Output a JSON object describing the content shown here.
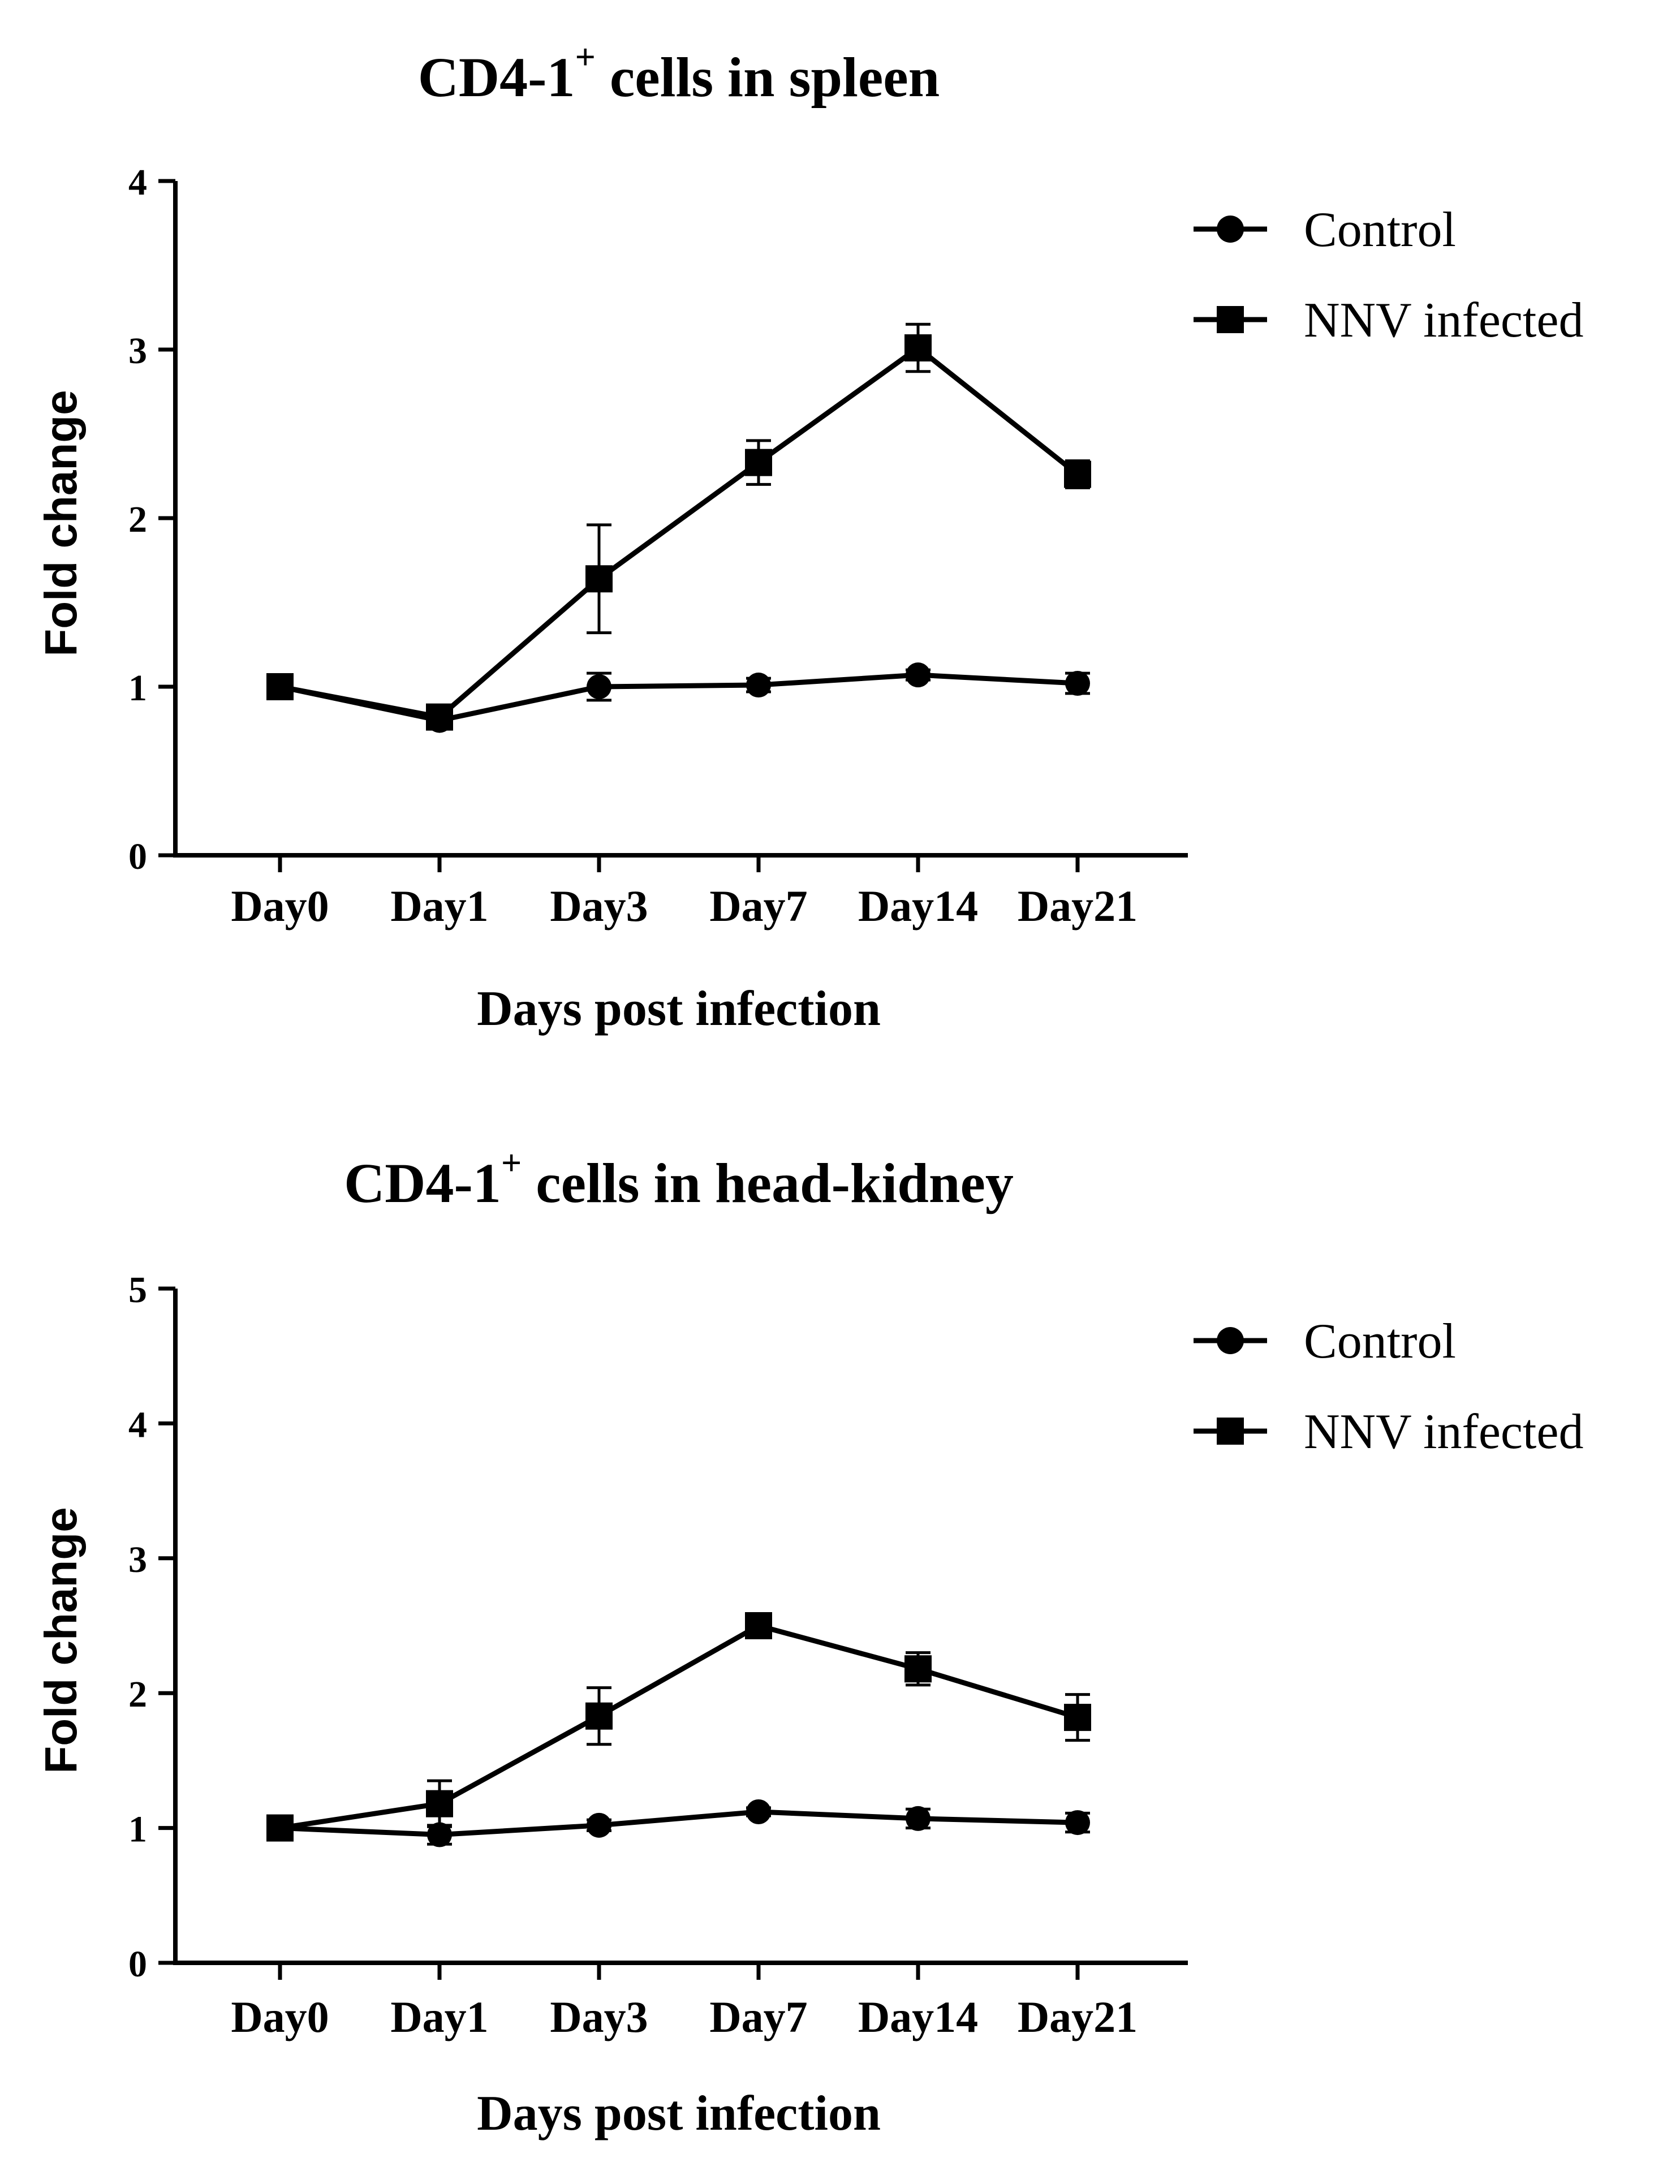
{
  "chart_data": [
    {
      "type": "line",
      "title": "CD4-1",
      "title_sup": "+",
      "title_rest": " cells in spleen",
      "xlabel": "Days post infection",
      "ylabel": "Fold change",
      "categories": [
        "Day0",
        "Day1",
        "Day3",
        "Day7",
        "Day14",
        "Day21"
      ],
      "ylim": [
        0,
        4
      ],
      "yticks": [
        "0",
        "1",
        "2",
        "3",
        "4"
      ],
      "legend_position": "top-right",
      "series": [
        {
          "name": "Control",
          "marker": "circle",
          "values": [
            1.0,
            0.8,
            1.0,
            1.01,
            1.07,
            1.02
          ],
          "errors": [
            0.02,
            0.05,
            0.08,
            0.04,
            0.03,
            0.06
          ]
        },
        {
          "name": "NNV infected",
          "marker": "square",
          "values": [
            1.0,
            0.82,
            1.64,
            2.33,
            3.01,
            2.26
          ],
          "errors": [
            0.02,
            0.04,
            0.32,
            0.13,
            0.14,
            0.08
          ]
        }
      ]
    },
    {
      "type": "line",
      "title": "CD4-1",
      "title_sup": "+",
      "title_rest": " cells in head-kidney",
      "xlabel": "Days post infection",
      "ylabel": "Fold change",
      "categories": [
        "Day0",
        "Day1",
        "Day3",
        "Day7",
        "Day14",
        "Day21"
      ],
      "ylim": [
        0,
        5
      ],
      "yticks": [
        "0",
        "1",
        "2",
        "3",
        "4",
        "5"
      ],
      "legend_position": "top-right",
      "series": [
        {
          "name": "Control",
          "marker": "circle",
          "values": [
            1.0,
            0.95,
            1.02,
            1.12,
            1.07,
            1.04
          ],
          "errors": [
            0.02,
            0.07,
            0.04,
            0.03,
            0.07,
            0.07
          ]
        },
        {
          "name": "NNV infected",
          "marker": "square",
          "values": [
            1.0,
            1.18,
            1.83,
            2.5,
            2.18,
            1.82
          ],
          "errors": [
            0.02,
            0.17,
            0.21,
            0.06,
            0.12,
            0.17
          ]
        }
      ]
    }
  ]
}
